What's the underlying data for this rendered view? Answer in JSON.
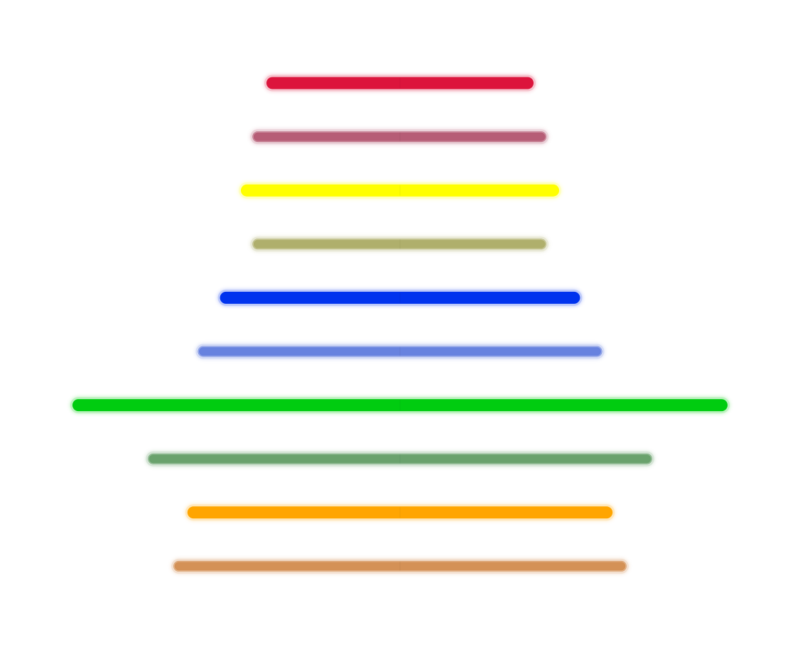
{
  "chart_data": {
    "type": "bar",
    "orientation": "horizontal",
    "title": "",
    "xlabel": "",
    "ylabel": "",
    "grid": false,
    "legend": "none",
    "center_aligned": true,
    "xlim": [
      -4.6,
      4.6
    ],
    "series": [
      {
        "values_left": [
          -1.15,
          -1.27,
          -1.37,
          -1.27,
          -1.55,
          -1.74,
          -2.82,
          -2.17,
          -1.83,
          -1.95
        ],
        "values_right": [
          1.15,
          1.26,
          1.37,
          1.26,
          1.55,
          1.74,
          2.82,
          2.17,
          1.83,
          1.95
        ]
      }
    ],
    "bars": [
      {
        "left": -1.15,
        "right": 1.15,
        "color": "#dc143c",
        "style": "solid"
      },
      {
        "left": -1.27,
        "right": 1.26,
        "color": "#b0506a",
        "style": "muted"
      },
      {
        "left": -1.37,
        "right": 1.37,
        "color": "#ffff00",
        "style": "solid"
      },
      {
        "left": -1.27,
        "right": 1.26,
        "color": "#a8a860",
        "style": "muted"
      },
      {
        "left": -1.55,
        "right": 1.55,
        "color": "#0033ee",
        "style": "solid"
      },
      {
        "left": -1.74,
        "right": 1.74,
        "color": "#5b78dd",
        "style": "muted"
      },
      {
        "left": -2.82,
        "right": 2.82,
        "color": "#00cc10",
        "style": "solid"
      },
      {
        "left": -2.17,
        "right": 2.17,
        "color": "#5e9a62",
        "style": "muted"
      },
      {
        "left": -1.83,
        "right": 1.83,
        "color": "#ffa500",
        "style": "solid"
      },
      {
        "left": -1.95,
        "right": 1.95,
        "color": "#d08848",
        "style": "muted"
      }
    ]
  }
}
